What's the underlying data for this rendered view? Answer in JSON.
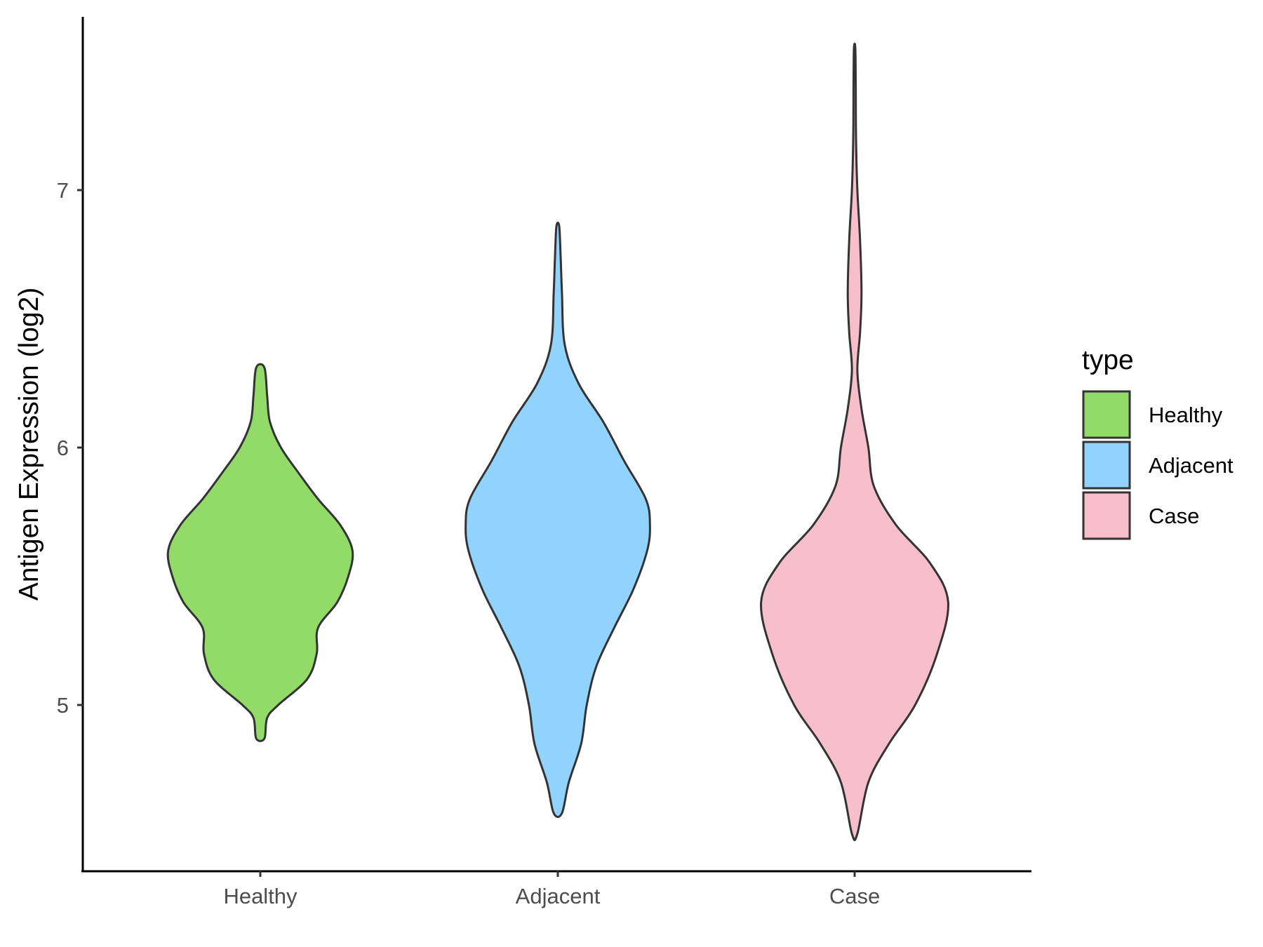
{
  "chart_data": {
    "type": "violin",
    "title": "",
    "xlabel": "",
    "ylabel": "Antigen Expression (log2)",
    "ylim": [
      4.4,
      7.7
    ],
    "y_ticks": [
      5,
      6,
      7
    ],
    "grid": false,
    "legend": {
      "title": "type",
      "placement": "right",
      "entries": [
        {
          "label": "Healthy",
          "color": "#93DB69"
        },
        {
          "label": "Adjacent",
          "color": "#92D3FD"
        },
        {
          "label": "Case",
          "color": "#F7BFCB"
        }
      ]
    },
    "categories": [
      "Healthy",
      "Adjacent",
      "Case"
    ],
    "series": [
      {
        "category": "Healthy",
        "color": "#93DB69",
        "min": 4.87,
        "max": 6.31,
        "density_profile": [
          [
            4.87,
            0.03
          ],
          [
            4.95,
            0.05
          ],
          [
            5.0,
            0.13
          ],
          [
            5.1,
            0.34
          ],
          [
            5.2,
            0.41
          ],
          [
            5.3,
            0.42
          ],
          [
            5.4,
            0.56
          ],
          [
            5.5,
            0.64
          ],
          [
            5.6,
            0.67
          ],
          [
            5.7,
            0.58
          ],
          [
            5.8,
            0.42
          ],
          [
            5.9,
            0.28
          ],
          [
            6.0,
            0.15
          ],
          [
            6.1,
            0.07
          ],
          [
            6.2,
            0.05
          ],
          [
            6.31,
            0.03
          ]
        ]
      },
      {
        "category": "Adjacent",
        "color": "#92D3FD",
        "min": 4.58,
        "max": 6.86,
        "density_profile": [
          [
            4.58,
            0.03
          ],
          [
            4.7,
            0.08
          ],
          [
            4.85,
            0.17
          ],
          [
            5.0,
            0.21
          ],
          [
            5.15,
            0.28
          ],
          [
            5.3,
            0.41
          ],
          [
            5.45,
            0.55
          ],
          [
            5.6,
            0.65
          ],
          [
            5.7,
            0.67
          ],
          [
            5.8,
            0.64
          ],
          [
            5.95,
            0.48
          ],
          [
            6.1,
            0.33
          ],
          [
            6.25,
            0.15
          ],
          [
            6.4,
            0.05
          ],
          [
            6.6,
            0.03
          ],
          [
            6.75,
            0.02
          ],
          [
            6.86,
            0.01
          ]
        ]
      },
      {
        "category": "Case",
        "color": "#F7BFCB",
        "min": 4.5,
        "max": 7.55,
        "density_profile": [
          [
            4.5,
            0.02
          ],
          [
            4.7,
            0.1
          ],
          [
            4.85,
            0.25
          ],
          [
            5.0,
            0.44
          ],
          [
            5.2,
            0.6
          ],
          [
            5.4,
            0.68
          ],
          [
            5.55,
            0.55
          ],
          [
            5.7,
            0.3
          ],
          [
            5.85,
            0.14
          ],
          [
            6.0,
            0.1
          ],
          [
            6.15,
            0.05
          ],
          [
            6.3,
            0.02
          ],
          [
            6.45,
            0.04
          ],
          [
            6.6,
            0.05
          ],
          [
            6.8,
            0.04
          ],
          [
            7.0,
            0.02
          ],
          [
            7.2,
            0.01
          ],
          [
            7.4,
            0.008
          ],
          [
            7.55,
            0.005
          ]
        ]
      }
    ]
  }
}
